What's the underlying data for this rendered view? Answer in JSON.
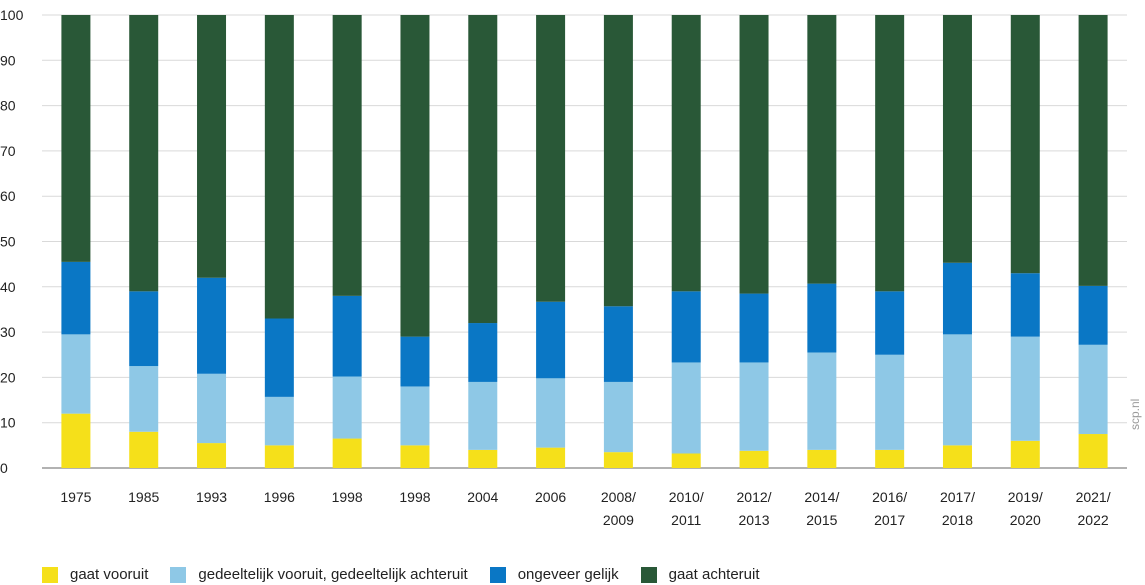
{
  "watermark": "scp.nl",
  "chart_data": {
    "type": "bar",
    "stacked": true,
    "categories": [
      "1975",
      "1985",
      "1993",
      "1996",
      "1998",
      "1998",
      "2004",
      "2006",
      "2008/\n2009",
      "2010/\n2011",
      "2012/\n2013",
      "2014/\n2015",
      "2016/\n2017",
      "2017/\n2018",
      "2019/\n2020",
      "2021/\n2022"
    ],
    "ylim": [
      0,
      100
    ],
    "yticks": [
      0,
      10,
      20,
      30,
      40,
      50,
      60,
      70,
      80,
      90,
      100
    ],
    "grid": true,
    "legend_position": "bottom-left",
    "series": [
      {
        "name": "gaat vooruit",
        "color": "#f5e01a",
        "values": [
          12,
          8,
          5.5,
          5,
          6.5,
          5,
          4,
          4.5,
          3.5,
          3.2,
          3.8,
          4,
          4,
          5,
          6,
          7.5
        ]
      },
      {
        "name": "gedeeltelijk vooruit, gedeeltelijk achteruit",
        "color": "#8ec8e6",
        "values": [
          17.5,
          14.5,
          15.3,
          10.7,
          13.7,
          13,
          15,
          15.3,
          15.5,
          20.1,
          19.5,
          21.5,
          21,
          24.5,
          23,
          19.7
        ]
      },
      {
        "name": "ongeveer gelijk",
        "color": "#0a77c5",
        "values": [
          16,
          16.5,
          21.2,
          17.3,
          17.8,
          11,
          13,
          16.9,
          16.7,
          15.7,
          15.2,
          15.2,
          14,
          15.8,
          14,
          13
        ]
      },
      {
        "name": "gaat achteruit",
        "color": "#295837",
        "values": [
          54.5,
          61,
          58,
          67,
          62,
          71,
          68,
          63.3,
          64.3,
          61,
          61.5,
          59.3,
          61,
          54.7,
          57,
          59.8
        ]
      }
    ]
  }
}
